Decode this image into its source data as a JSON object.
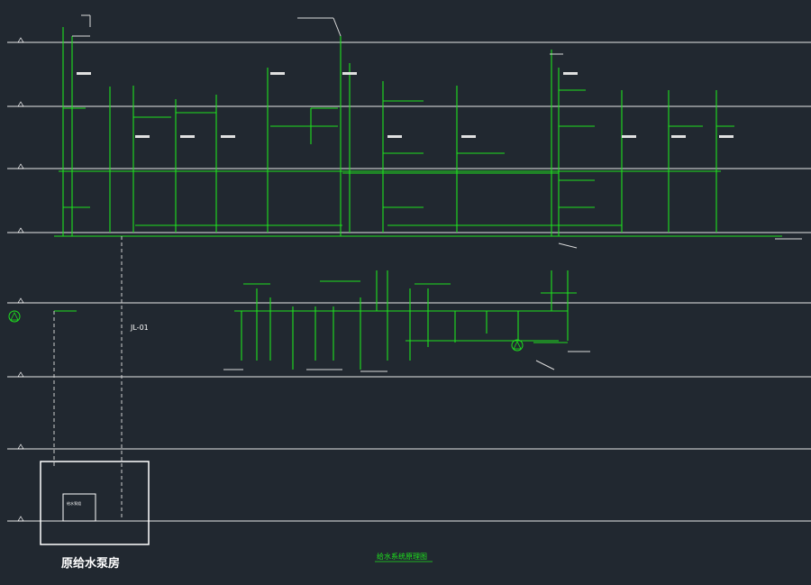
{
  "drawing": {
    "title": "给水系统原理图",
    "pump_room_label": "原给水泵房",
    "riser_main_label": "JL-01",
    "tiny_label": "DN50"
  },
  "risers": [
    "JL-1",
    "JL-5",
    "JL-6",
    "JL-7",
    "JL-8",
    "JL-9",
    "JL-10",
    "JL-11",
    "JL-12",
    "JL-13",
    "JL-14",
    "JL-15"
  ],
  "pump_room": {
    "equipment_label": "给水泵组"
  },
  "colors": {
    "background": "#212830",
    "pipe": "#1ee11e",
    "line": "#e8e8e8",
    "text": "#ffffff"
  }
}
